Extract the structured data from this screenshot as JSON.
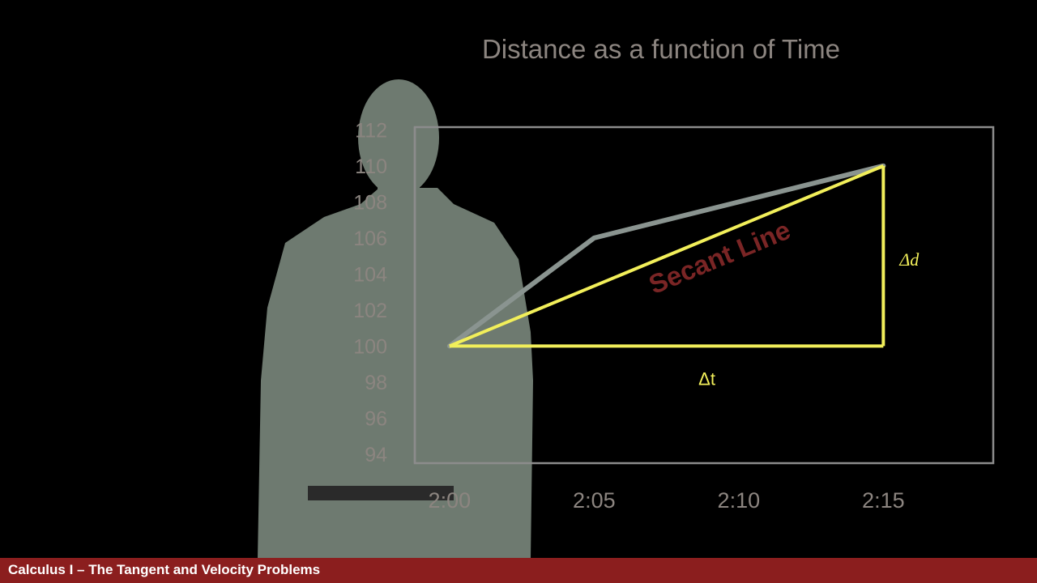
{
  "chart_data": {
    "type": "line",
    "title": "Distance as a function of Time",
    "x_tick_labels": [
      "2:00",
      "2:05",
      "2:10",
      "2:15"
    ],
    "y_tick_labels": [
      94,
      96,
      98,
      100,
      102,
      104,
      106,
      108,
      110,
      112
    ],
    "x_unit": "minutes after 2:00",
    "x_range": [
      -1.2,
      18.8
    ],
    "y_range": [
      93.5,
      112.15
    ],
    "series": [
      {
        "x": [
          0,
          5,
          15
        ],
        "y": [
          100,
          106,
          110
        ]
      }
    ],
    "secant": {
      "label": "Secant Line",
      "from": [
        0,
        100
      ],
      "to": [
        15,
        110
      ],
      "delta_t_label": "Δt",
      "delta_d_label": "Δd"
    },
    "colors": {
      "curve": "#8a9490",
      "secant": "#f2ef5a",
      "secant_label": "#7a2525",
      "frame": "#8c8c8c",
      "text": "#8c8580",
      "presenter": "#6e7a70"
    }
  },
  "footer": {
    "title": "Calculus I – The Tangent and Velocity Problems",
    "bar_color": "#8b1e1e"
  }
}
